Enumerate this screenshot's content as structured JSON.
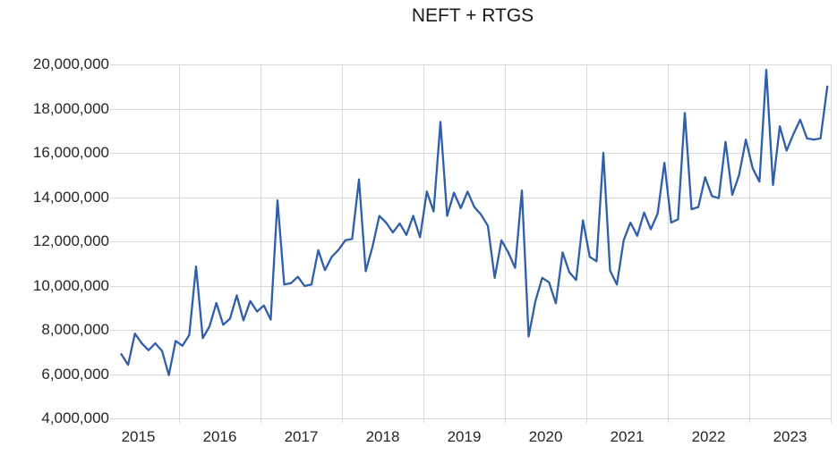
{
  "chart_data": {
    "type": "line",
    "title": "NEFT + RTGS",
    "xlabel": "",
    "ylabel": "",
    "frequency": "monthly",
    "start_month": "2015-04",
    "end_month": "2023-12",
    "values": [
      6900000,
      6420000,
      7830000,
      7400000,
      7080000,
      7390000,
      7050000,
      5950000,
      7500000,
      7280000,
      7760000,
      10860000,
      7620000,
      8160000,
      9220000,
      8230000,
      8500000,
      9560000,
      8430000,
      9300000,
      8830000,
      9100000,
      8460000,
      13850000,
      10050000,
      10110000,
      10400000,
      9980000,
      10050000,
      11600000,
      10700000,
      11300000,
      11620000,
      12050000,
      12110000,
      14800000,
      10650000,
      11750000,
      13150000,
      12850000,
      12400000,
      12810000,
      12290000,
      13150000,
      12180000,
      14250000,
      13350000,
      17400000,
      13150000,
      14200000,
      13500000,
      14250000,
      13550000,
      13200000,
      12700000,
      10350000,
      12050000,
      11500000,
      10800000,
      14300000,
      7700000,
      9300000,
      10350000,
      10150000,
      9200000,
      11500000,
      10600000,
      10250000,
      12950000,
      11300000,
      11100000,
      16000000,
      10680000,
      10050000,
      12050000,
      12850000,
      12250000,
      13300000,
      12550000,
      13250000,
      15550000,
      12850000,
      13000000,
      17800000,
      13450000,
      13550000,
      14900000,
      14050000,
      13950000,
      16500000,
      14100000,
      15000000,
      16600000,
      15300000,
      14700000,
      19750000,
      14550000,
      17200000,
      16100000,
      16850000,
      17500000,
      16650000,
      16600000,
      16650000,
      19000000
    ],
    "ylim": [
      4000000,
      20000000
    ],
    "grid": true,
    "legend": "none",
    "y_ticks": [
      {
        "value": 20000000,
        "label": "20,000,000"
      },
      {
        "value": 18000000,
        "label": "18,000,000"
      },
      {
        "value": 16000000,
        "label": "16,000,000"
      },
      {
        "value": 14000000,
        "label": "14,000,000"
      },
      {
        "value": 12000000,
        "label": "12,000,000"
      },
      {
        "value": 10000000,
        "label": "10,000,000"
      },
      {
        "value": 8000000,
        "label": "8,000,000"
      },
      {
        "value": 6000000,
        "label": "6,000,000"
      },
      {
        "value": 4000000,
        "label": "4,000,000"
      }
    ],
    "x_ticks": [
      {
        "year": 2015,
        "label": "2015"
      },
      {
        "year": 2016,
        "label": "2016"
      },
      {
        "year": 2017,
        "label": "2017"
      },
      {
        "year": 2018,
        "label": "2018"
      },
      {
        "year": 2019,
        "label": "2019"
      },
      {
        "year": 2020,
        "label": "2020"
      },
      {
        "year": 2021,
        "label": "2021"
      },
      {
        "year": 2022,
        "label": "2022"
      },
      {
        "year": 2023,
        "label": "2023"
      }
    ],
    "colors": {
      "line": "#2E5FA8",
      "grid": "#D9D9D9",
      "tick_text": "#262626",
      "title_text": "#1a1a1a",
      "background": "#FFFFFF"
    }
  }
}
